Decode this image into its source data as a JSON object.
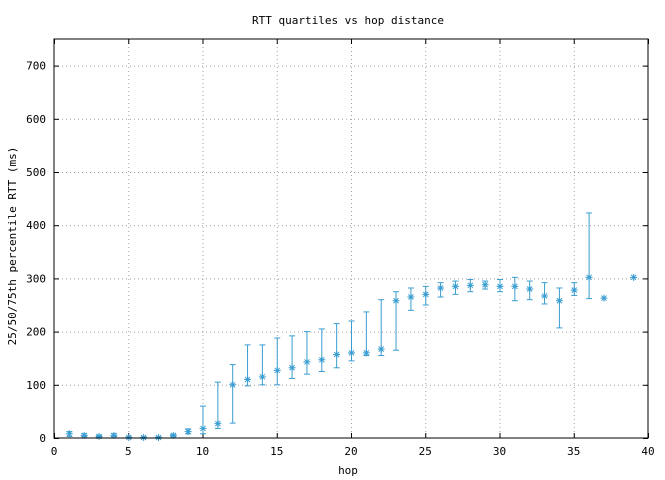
{
  "chart_data": {
    "type": "scatter",
    "title": "RTT quartiles vs hop distance",
    "xlabel": "hop",
    "ylabel": "25/50/75th percentile RTT (ms)",
    "xlim": [
      0,
      40
    ],
    "ylim": [
      0,
      750
    ],
    "xticks": [
      0,
      5,
      10,
      15,
      20,
      25,
      30,
      35,
      40
    ],
    "yticks": [
      0,
      100,
      200,
      300,
      400,
      500,
      600,
      700
    ],
    "grid": true,
    "color": "#3a9dd1",
    "points": [
      {
        "hop": 1,
        "p25": 3,
        "median": 8,
        "p75": 12
      },
      {
        "hop": 2,
        "p25": 3,
        "median": 5,
        "p75": 8
      },
      {
        "hop": 3,
        "p25": 2,
        "median": 3,
        "p75": 5
      },
      {
        "hop": 4,
        "p25": 3,
        "median": 5,
        "p75": 8
      },
      {
        "hop": 5,
        "p25": 0,
        "median": 1,
        "p75": 2
      },
      {
        "hop": 6,
        "p25": 0,
        "median": 1,
        "p75": 2
      },
      {
        "hop": 7,
        "p25": 0,
        "median": 1,
        "p75": 2
      },
      {
        "hop": 8,
        "p25": 3,
        "median": 5,
        "p75": 7
      },
      {
        "hop": 9,
        "p25": 8,
        "median": 12,
        "p75": 17
      },
      {
        "hop": 10,
        "p25": 8,
        "median": 18,
        "p75": 60
      },
      {
        "hop": 11,
        "p25": 18,
        "median": 27,
        "p75": 105
      },
      {
        "hop": 12,
        "p25": 28,
        "median": 100,
        "p75": 138
      },
      {
        "hop": 13,
        "p25": 98,
        "median": 110,
        "p75": 175
      },
      {
        "hop": 14,
        "p25": 100,
        "median": 115,
        "p75": 175
      },
      {
        "hop": 15,
        "p25": 100,
        "median": 127,
        "p75": 188
      },
      {
        "hop": 16,
        "p25": 112,
        "median": 132,
        "p75": 192
      },
      {
        "hop": 17,
        "p25": 120,
        "median": 143,
        "p75": 200
      },
      {
        "hop": 18,
        "p25": 125,
        "median": 147,
        "p75": 205
      },
      {
        "hop": 19,
        "p25": 132,
        "median": 157,
        "p75": 215
      },
      {
        "hop": 20,
        "p25": 145,
        "median": 160,
        "p75": 220
      },
      {
        "hop": 21,
        "p25": 155,
        "median": 160,
        "p75": 237
      },
      {
        "hop": 22,
        "p25": 155,
        "median": 167,
        "p75": 260
      },
      {
        "hop": 23,
        "p25": 165,
        "median": 258,
        "p75": 275
      },
      {
        "hop": 24,
        "p25": 240,
        "median": 265,
        "p75": 282
      },
      {
        "hop": 25,
        "p25": 250,
        "median": 270,
        "p75": 285
      },
      {
        "hop": 26,
        "p25": 265,
        "median": 282,
        "p75": 292
      },
      {
        "hop": 27,
        "p25": 270,
        "median": 285,
        "p75": 295
      },
      {
        "hop": 28,
        "p25": 275,
        "median": 287,
        "p75": 298
      },
      {
        "hop": 29,
        "p25": 280,
        "median": 288,
        "p75": 295
      },
      {
        "hop": 30,
        "p25": 275,
        "median": 285,
        "p75": 298
      },
      {
        "hop": 31,
        "p25": 258,
        "median": 285,
        "p75": 302
      },
      {
        "hop": 32,
        "p25": 260,
        "median": 280,
        "p75": 295
      },
      {
        "hop": 33,
        "p25": 252,
        "median": 267,
        "p75": 292
      },
      {
        "hop": 34,
        "p25": 207,
        "median": 258,
        "p75": 282
      },
      {
        "hop": 35,
        "p25": 268,
        "median": 278,
        "p75": 292
      },
      {
        "hop": 36,
        "p25": 262,
        "median": 302,
        "p75": 423
      },
      {
        "hop": 37,
        "p25": 263,
        "median": 263,
        "p75": 263
      },
      {
        "hop": 39,
        "p25": 302,
        "median": 302,
        "p75": 302
      }
    ]
  }
}
